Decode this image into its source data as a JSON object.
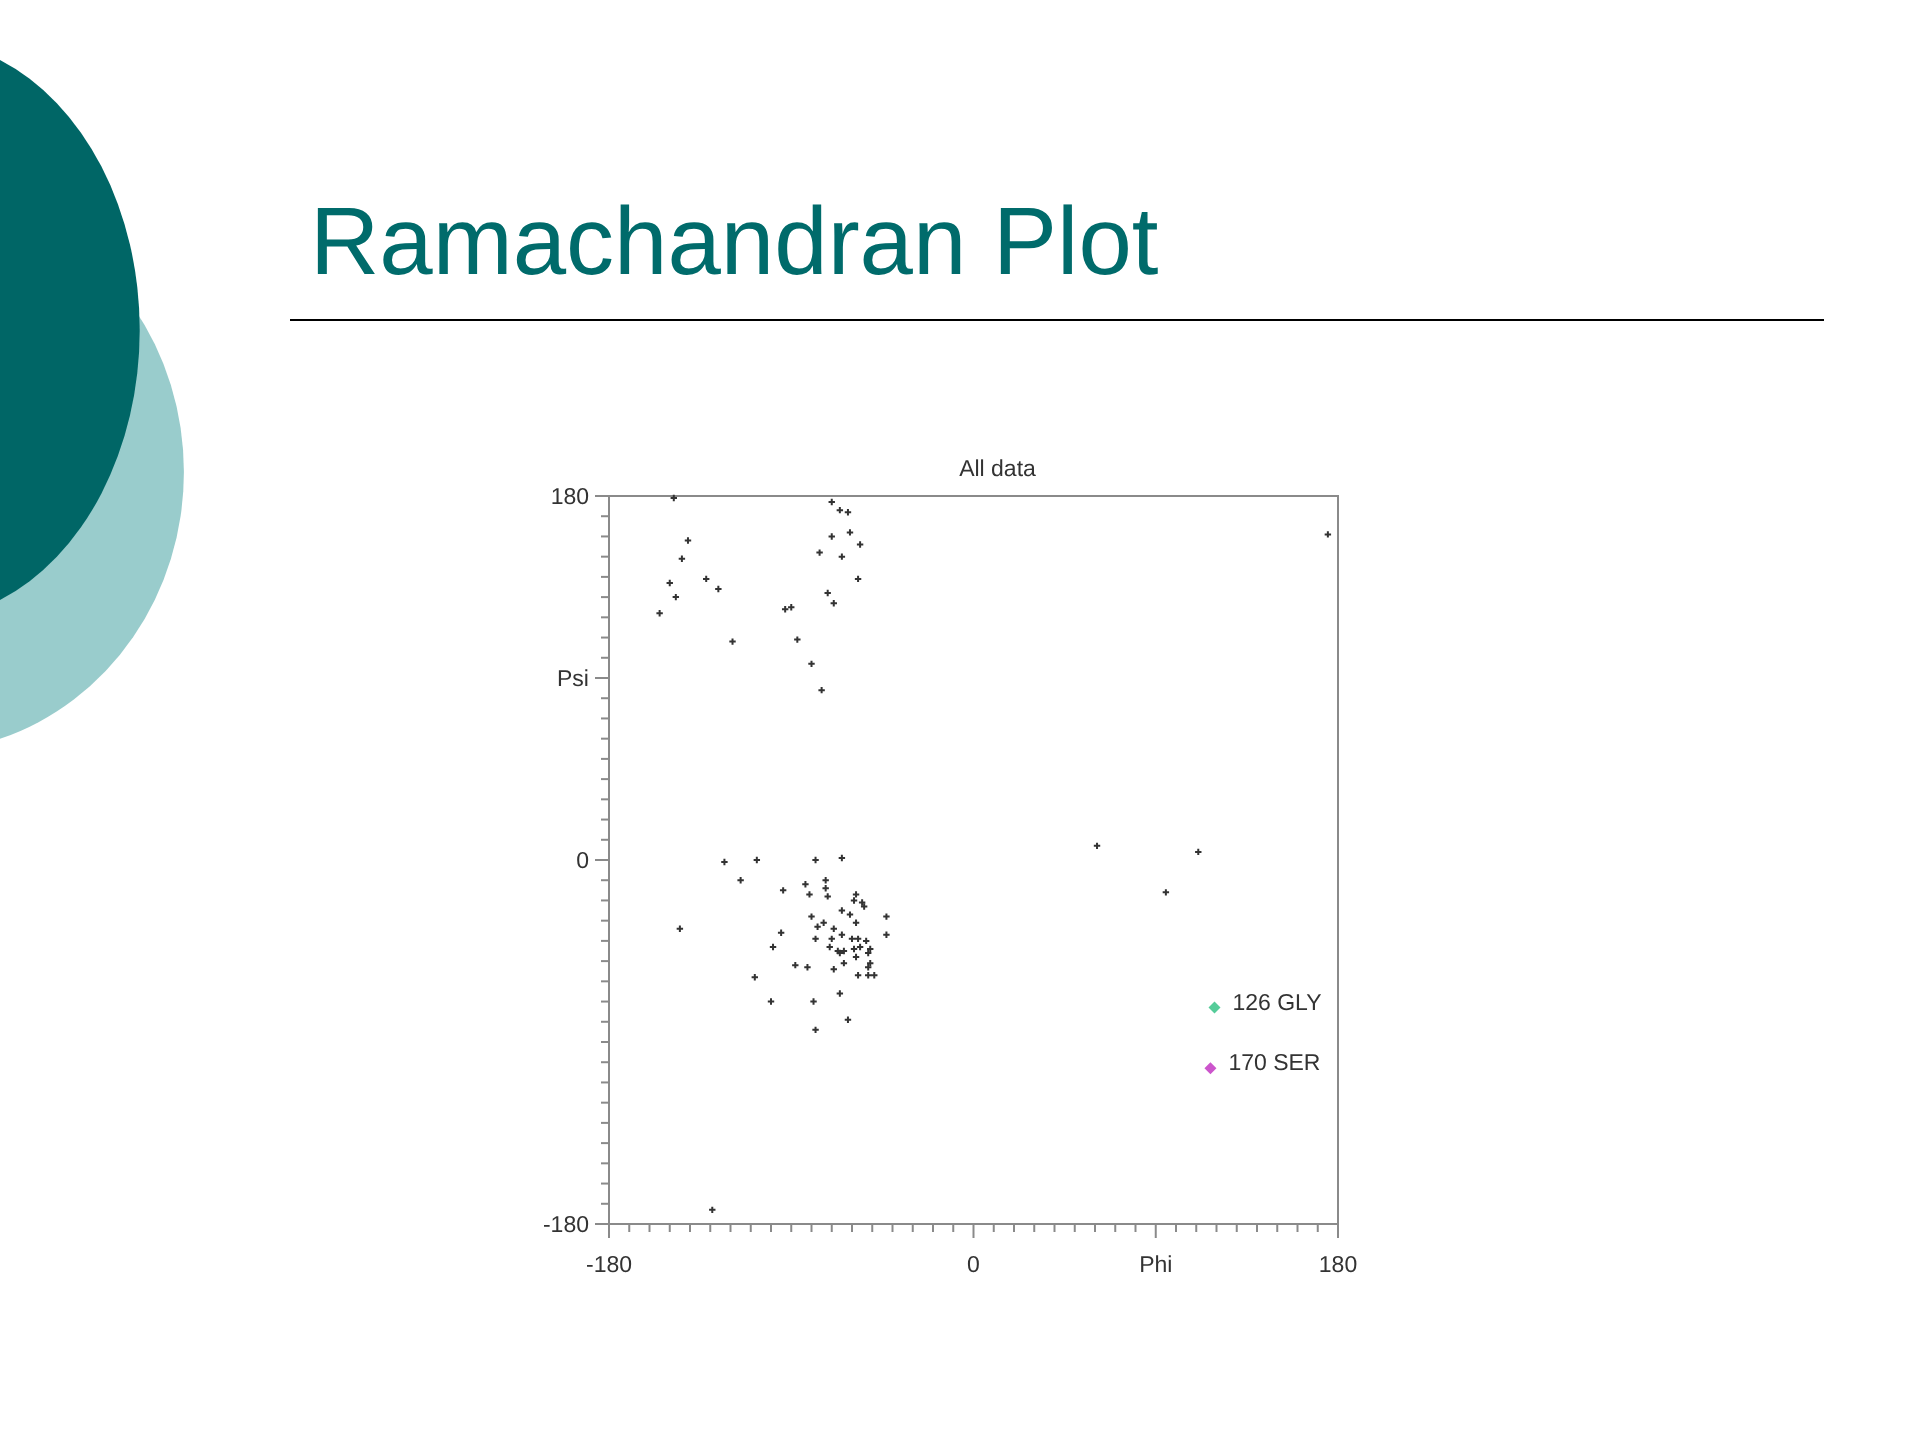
{
  "chart_data": {
    "type": "scatter",
    "title": "Ramachandran Plot",
    "subtitle": "All data",
    "series": [
      {
        "color": "#333333",
        "marker": "cross",
        "x": [
          -148,
          -141,
          -144,
          -150,
          -147,
          -132,
          -126,
          -155,
          -119,
          -93,
          -90,
          -87,
          -80,
          -75,
          -70,
          -66,
          -62,
          -61,
          -70,
          -76,
          -65,
          -56,
          -57,
          -72,
          -69,
          175,
          61,
          111,
          95,
          -129,
          -123,
          -107,
          -115,
          -78,
          -65,
          -94,
          -83,
          -73,
          -81,
          -73,
          -72,
          -58,
          -59,
          -55,
          -54,
          -65,
          -61,
          -80,
          -43,
          -145,
          -77,
          -74,
          -69,
          -58,
          -95,
          -78,
          -70,
          -65,
          -60,
          -57,
          -53,
          -43,
          -71,
          -67,
          -66,
          -64,
          -59,
          -56,
          -51,
          -52,
          -99,
          -58,
          -64,
          -69,
          -88,
          -82,
          -51,
          -52,
          -57,
          -52,
          -49,
          -108,
          -100,
          -79,
          -66,
          -62,
          -78
        ],
        "values": [
          179,
          158,
          149,
          137,
          130,
          139,
          134,
          122,
          108,
          124,
          125,
          109,
          97,
          84,
          177,
          173,
          172,
          162,
          160,
          152,
          150,
          156,
          139,
          132,
          127,
          161,
          7,
          4,
          -16,
          -173,
          -1,
          0,
          -10,
          0,
          1,
          -15,
          -12,
          -10,
          -17,
          -14,
          -18,
          -17,
          -20,
          -21,
          -23,
          -25,
          -27,
          -28,
          -28,
          -34,
          -33,
          -31,
          -34,
          -31,
          -36,
          -39,
          -39,
          -37,
          -39,
          -39,
          -40,
          -37,
          -43,
          -45,
          -46,
          -45,
          -44,
          -43,
          -44,
          -46,
          -43,
          -48,
          -51,
          -54,
          -52,
          -53,
          -51,
          -53,
          -57,
          -57,
          -57,
          -58,
          -70,
          -70,
          -66,
          -79,
          -84
        ]
      },
      {
        "name": "126 GLY",
        "color": "#55cc99",
        "marker": "diamond",
        "x": [
          119
        ],
        "values": [
          -73
        ]
      },
      {
        "name": "170 SER",
        "color": "#cc55cc",
        "marker": "diamond",
        "x": [
          117
        ],
        "values": [
          -103
        ]
      }
    ],
    "xlim": [
      -180,
      180
    ],
    "ylim": [
      -180,
      180
    ],
    "xticks": [
      -180,
      {
        "value": -170,
        "label": null
      },
      {
        "value": -160,
        "label": null
      },
      {
        "value": -150,
        "label": null
      },
      {
        "value": -140,
        "label": null
      },
      {
        "value": -130,
        "label": null
      },
      {
        "value": -120,
        "label": null
      },
      {
        "value": -110,
        "label": null
      },
      {
        "value": -100,
        "label": null
      },
      {
        "value": -90,
        "label": null
      },
      {
        "value": -80,
        "label": null
      },
      {
        "value": -70,
        "label": null
      },
      {
        "value": -60,
        "label": null
      },
      {
        "value": -50,
        "label": null
      },
      {
        "value": -40,
        "label": null
      },
      {
        "value": -30,
        "label": null
      },
      {
        "value": -20,
        "label": null
      },
      {
        "value": -10,
        "label": null
      },
      0,
      {
        "value": 10,
        "label": null
      },
      {
        "value": 20,
        "label": null
      },
      {
        "value": 30,
        "label": null
      },
      {
        "value": 40,
        "label": null
      },
      {
        "value": 50,
        "label": null
      },
      {
        "value": 60,
        "label": null
      },
      {
        "value": 70,
        "label": null
      },
      {
        "value": 80,
        "label": null
      },
      {
        "value": 90,
        "label": "Phi"
      },
      {
        "value": 100,
        "label": null
      },
      {
        "value": 110,
        "label": null
      },
      {
        "value": 120,
        "label": null
      },
      {
        "value": 130,
        "label": null
      },
      {
        "value": 140,
        "label": null
      },
      {
        "value": 150,
        "label": null
      },
      {
        "value": 160,
        "label": null
      },
      {
        "value": 170,
        "label": null
      },
      180
    ],
    "yticks": [
      -180,
      {
        "value": -170,
        "label": null
      },
      {
        "value": -160,
        "label": null
      },
      {
        "value": -150,
        "label": null
      },
      {
        "value": -140,
        "label": null
      },
      {
        "value": -130,
        "label": null
      },
      {
        "value": -120,
        "label": null
      },
      {
        "value": -110,
        "label": null
      },
      {
        "value": -100,
        "label": null
      },
      {
        "value": -90,
        "label": null
      },
      {
        "value": -80,
        "label": null
      },
      {
        "value": -70,
        "label": null
      },
      {
        "value": -60,
        "label": null
      },
      {
        "value": -50,
        "label": null
      },
      {
        "value": -40,
        "label": null
      },
      {
        "value": -30,
        "label": null
      },
      {
        "value": -20,
        "label": null
      },
      {
        "value": -10,
        "label": null
      },
      0,
      {
        "value": 10,
        "label": null
      },
      {
        "value": 20,
        "label": null
      },
      {
        "value": 30,
        "label": null
      },
      {
        "value": 40,
        "label": null
      },
      {
        "value": 50,
        "label": null
      },
      {
        "value": 60,
        "label": null
      },
      {
        "value": 70,
        "label": null
      },
      {
        "value": 80,
        "label": null
      },
      {
        "value": 90,
        "label": "Psi"
      },
      {
        "value": 100,
        "label": null
      },
      {
        "value": 110,
        "label": null
      },
      {
        "value": 120,
        "label": null
      },
      {
        "value": 130,
        "label": null
      },
      {
        "value": 140,
        "label": null
      },
      {
        "value": 150,
        "label": null
      },
      {
        "value": 160,
        "label": null
      },
      {
        "value": 170,
        "label": null
      },
      180
    ]
  }
}
